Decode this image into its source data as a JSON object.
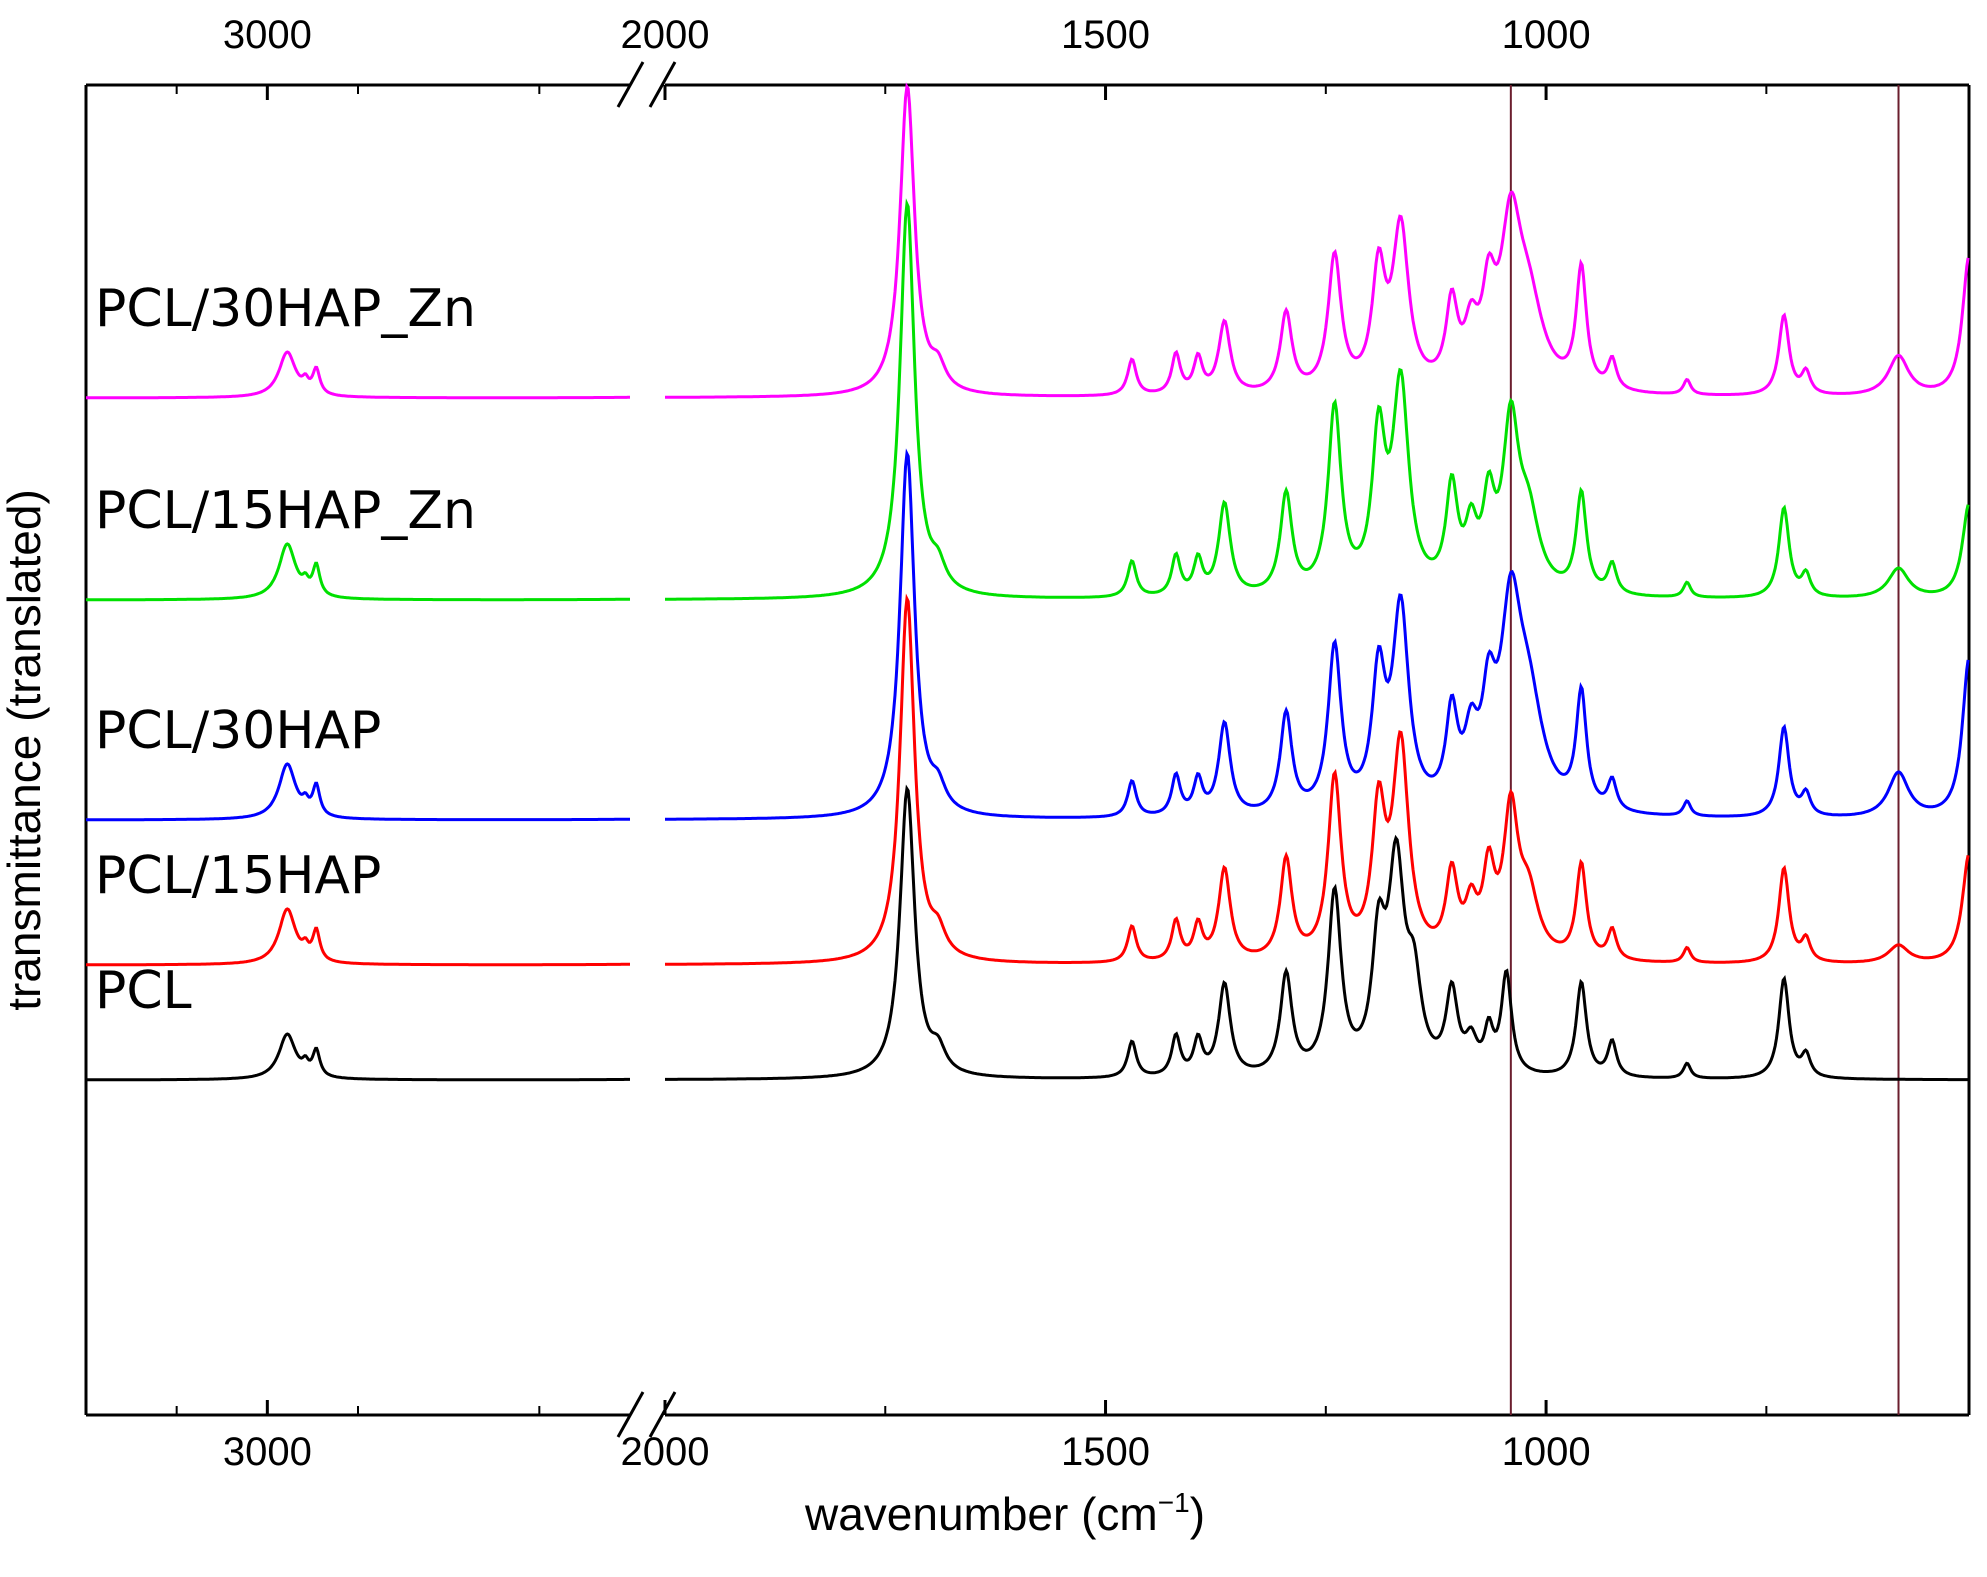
{
  "chart_data": {
    "type": "line",
    "xlabel": "wavenumber (cm",
    "xlabel_sup": "−1",
    "xlabel_close": ")",
    "ylabel": "transmittance (translated)",
    "x_reversed": true,
    "axis_break": [
      2000,
      2700
    ],
    "xlim": [
      3500,
      520
    ],
    "xticks_left": [
      3000,
      2000
    ],
    "xticks_right": [
      2000,
      1500,
      1000
    ],
    "vlines": [
      1040,
      600
    ],
    "vline_color": "#6b1e2e",
    "series": [
      {
        "name": "PCL",
        "color": "#000000",
        "baseline": 1080,
        "peaks": [
          [
            2945,
            45,
            28
          ],
          [
            2865,
            26,
            12
          ],
          [
            2895,
            10,
            10
          ],
          [
            1725,
            290,
            10
          ],
          [
            1690,
            22,
            10
          ],
          [
            1470,
            36,
            6
          ],
          [
            1420,
            40,
            6
          ],
          [
            1395,
            35,
            6
          ],
          [
            1365,
            92,
            8
          ],
          [
            1295,
            100,
            8
          ],
          [
            1240,
            180,
            9
          ],
          [
            1190,
            120,
            9
          ],
          [
            1170,
            200,
            11
          ],
          [
            1150,
            80,
            10
          ],
          [
            1107,
            80,
            8
          ],
          [
            1085,
            30,
            8
          ],
          [
            1065,
            40,
            6
          ],
          [
            1045,
            100,
            7
          ],
          [
            960,
            95,
            7
          ],
          [
            925,
            35,
            6
          ],
          [
            840,
            15,
            5
          ],
          [
            730,
            100,
            7
          ],
          [
            705,
            22,
            6
          ]
        ]
      },
      {
        "name": "PCL/15HAP",
        "color": "#ff0000",
        "baseline": 965,
        "peaks": [
          [
            2945,
            55,
            28
          ],
          [
            2865,
            30,
            12
          ],
          [
            2895,
            10,
            10
          ],
          [
            1725,
            365,
            10
          ],
          [
            1690,
            22,
            10
          ],
          [
            1470,
            36,
            6
          ],
          [
            1420,
            40,
            6
          ],
          [
            1395,
            35,
            6
          ],
          [
            1365,
            92,
            8
          ],
          [
            1295,
            100,
            8
          ],
          [
            1240,
            180,
            9
          ],
          [
            1190,
            140,
            9
          ],
          [
            1165,
            210,
            11
          ],
          [
            1107,
            80,
            8
          ],
          [
            1085,
            45,
            8
          ],
          [
            1065,
            80,
            8
          ],
          [
            1040,
            140,
            10
          ],
          [
            1020,
            60,
            14
          ],
          [
            960,
            95,
            7
          ],
          [
            925,
            30,
            6
          ],
          [
            840,
            15,
            5
          ],
          [
            730,
            95,
            7
          ],
          [
            705,
            22,
            6
          ],
          [
            600,
            18,
            14
          ],
          [
            520,
            110,
            9
          ]
        ]
      },
      {
        "name": "PCL/30HAP",
        "color": "#0000ff",
        "baseline": 820,
        "peaks": [
          [
            2945,
            55,
            28
          ],
          [
            2865,
            30,
            12
          ],
          [
            2895,
            10,
            10
          ],
          [
            1725,
            365,
            10
          ],
          [
            1690,
            22,
            10
          ],
          [
            1470,
            36,
            6
          ],
          [
            1420,
            40,
            6
          ],
          [
            1395,
            35,
            6
          ],
          [
            1365,
            92,
            8
          ],
          [
            1295,
            100,
            8
          ],
          [
            1240,
            165,
            9
          ],
          [
            1190,
            130,
            9
          ],
          [
            1165,
            200,
            11
          ],
          [
            1107,
            90,
            8
          ],
          [
            1085,
            60,
            9
          ],
          [
            1065,
            90,
            9
          ],
          [
            1040,
            180,
            14
          ],
          [
            1020,
            100,
            20
          ],
          [
            960,
            115,
            7
          ],
          [
            925,
            30,
            6
          ],
          [
            840,
            15,
            5
          ],
          [
            730,
            90,
            7
          ],
          [
            705,
            22,
            6
          ],
          [
            600,
            45,
            14
          ],
          [
            520,
            160,
            9
          ]
        ]
      },
      {
        "name": "PCL/15HAP_Zn",
        "color": "#00e000",
        "baseline": 600,
        "peaks": [
          [
            2945,
            55,
            28
          ],
          [
            2865,
            30,
            12
          ],
          [
            2895,
            10,
            10
          ],
          [
            1725,
            395,
            10
          ],
          [
            1690,
            22,
            10
          ],
          [
            1470,
            36,
            6
          ],
          [
            1420,
            40,
            6
          ],
          [
            1395,
            35,
            6
          ],
          [
            1365,
            92,
            8
          ],
          [
            1295,
            100,
            8
          ],
          [
            1240,
            185,
            9
          ],
          [
            1190,
            150,
            9
          ],
          [
            1165,
            205,
            11
          ],
          [
            1107,
            100,
            8
          ],
          [
            1085,
            55,
            8
          ],
          [
            1065,
            80,
            8
          ],
          [
            1040,
            160,
            11
          ],
          [
            1020,
            70,
            15
          ],
          [
            960,
            100,
            7
          ],
          [
            925,
            30,
            6
          ],
          [
            840,
            15,
            5
          ],
          [
            730,
            90,
            7
          ],
          [
            705,
            22,
            6
          ],
          [
            600,
            30,
            14
          ],
          [
            520,
            95,
            9
          ]
        ]
      },
      {
        "name": "PCL/30HAP_Zn",
        "color": "#ff00ff",
        "baseline": 398,
        "peaks": [
          [
            2945,
            45,
            28
          ],
          [
            2865,
            25,
            12
          ],
          [
            2895,
            10,
            10
          ],
          [
            1725,
            310,
            10
          ],
          [
            1690,
            22,
            10
          ],
          [
            1470,
            36,
            6
          ],
          [
            1420,
            40,
            6
          ],
          [
            1395,
            35,
            6
          ],
          [
            1365,
            72,
            8
          ],
          [
            1295,
            80,
            8
          ],
          [
            1240,
            135,
            9
          ],
          [
            1190,
            115,
            9
          ],
          [
            1165,
            160,
            11
          ],
          [
            1107,
            80,
            8
          ],
          [
            1085,
            50,
            9
          ],
          [
            1065,
            80,
            9
          ],
          [
            1040,
            150,
            14
          ],
          [
            1020,
            80,
            20
          ],
          [
            960,
            120,
            7
          ],
          [
            925,
            30,
            6
          ],
          [
            840,
            15,
            5
          ],
          [
            730,
            80,
            7
          ],
          [
            705,
            22,
            6
          ],
          [
            600,
            40,
            14
          ],
          [
            520,
            140,
            9
          ]
        ]
      }
    ]
  }
}
